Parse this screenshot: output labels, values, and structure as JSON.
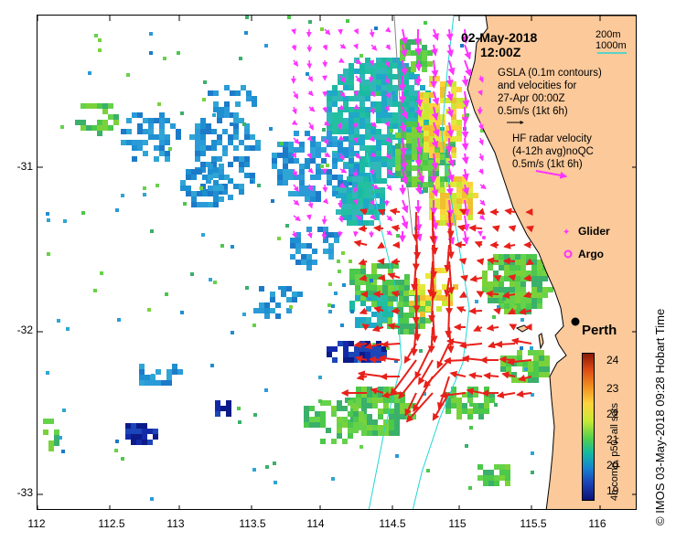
{
  "map": {
    "date": "02-May-2018",
    "time": "12:00Z",
    "contour_legend": [
      "200m",
      "1000m"
    ],
    "gsla_text": [
      "GSLA (0.1m contours)",
      "and velocities for",
      "27-Apr 00:00Z",
      "0.5m/s (1kt 6h)"
    ],
    "hf_text": [
      "HF radar velocity",
      "(4-12h avg)noQC",
      "0.5m/s (1kt 6h)"
    ],
    "glider_label": "Glider",
    "argo_label": "Argo",
    "city": "Perth",
    "colorbar_label": "4h comp, p50, all sats",
    "colorbar_ticks": [
      "24",
      "23",
      "22",
      "21",
      "20",
      "19"
    ],
    "y_ticks": [
      "-31",
      "-32",
      "-33"
    ],
    "x_ticks": [
      "112",
      "112.5",
      "113",
      "113.5",
      "114",
      "114.5",
      "115",
      "115.5",
      "116"
    ],
    "credit": "© IMOS 03-May-2018 09:28 Hobart Time",
    "colors": {
      "land": "#fbc99a",
      "hf_arrow": "#ff33ff",
      "gsla_arrow": "#e8201a",
      "contour": "#1fd7d7"
    }
  }
}
